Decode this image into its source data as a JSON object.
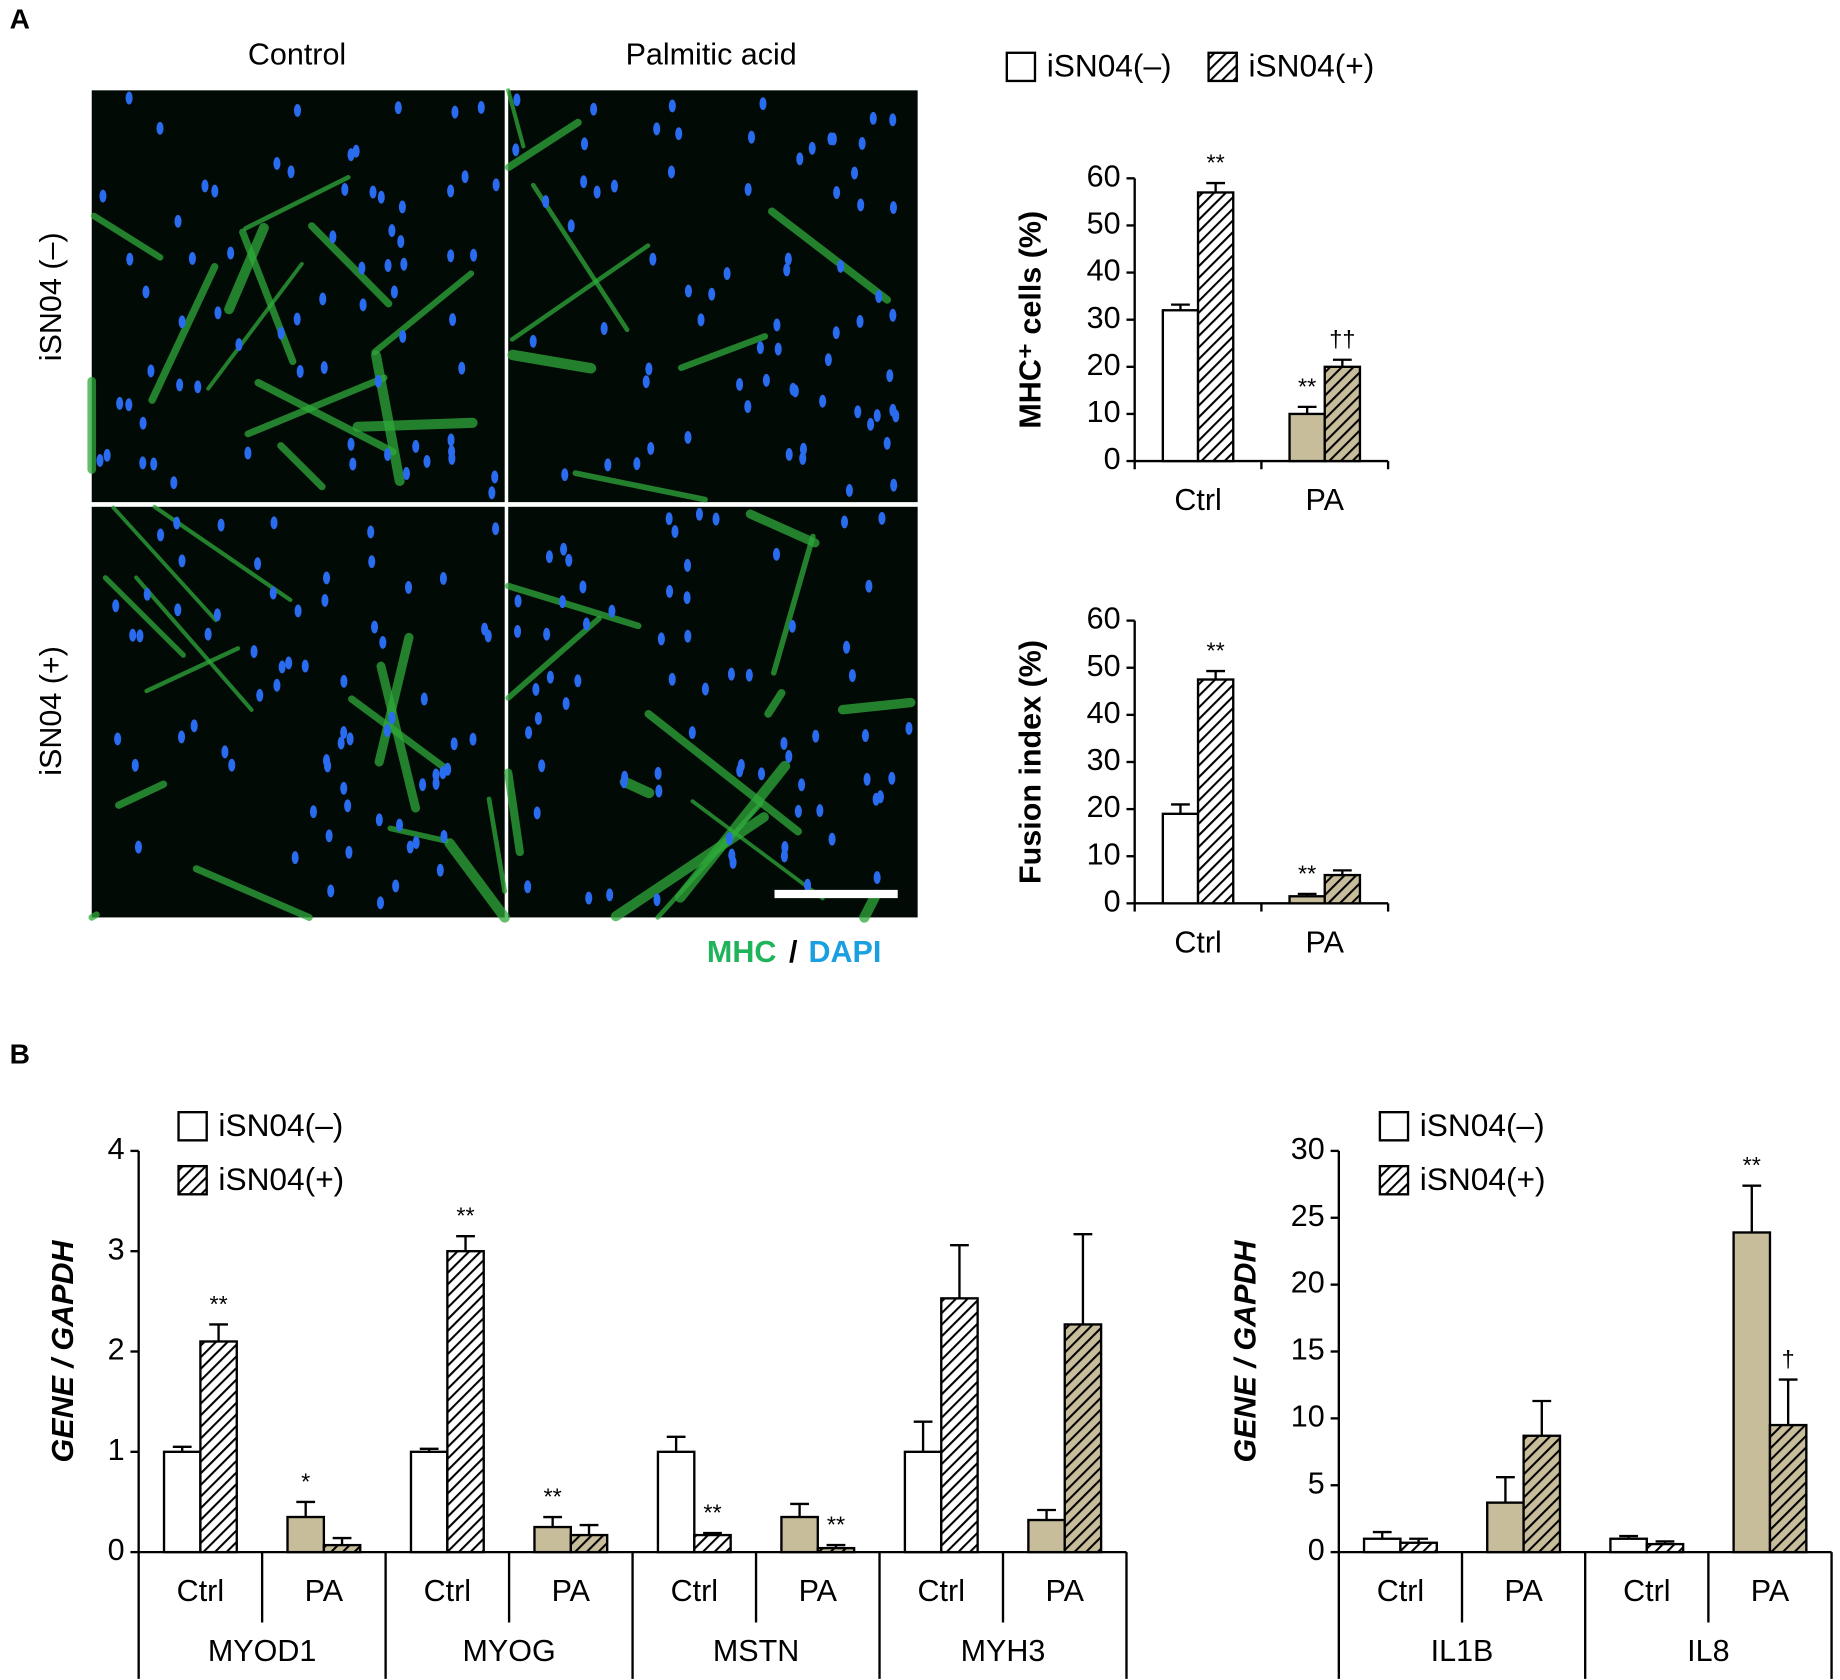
{
  "panels": [
    "A",
    "B"
  ],
  "micrograph": {
    "columns": [
      "Control",
      "Palmitic acid"
    ],
    "rows": [
      "iSN04 (–)",
      "iSN04 (+)"
    ],
    "stain": [
      "MHC",
      "/",
      "DAPI"
    ]
  },
  "chart_data": [
    {
      "type": "bar",
      "ylabel": "MHC⁺ cells (%)",
      "categories": [
        "Ctrl",
        "PA"
      ],
      "colors": {
        "Ctrl": "#ffffff",
        "PA": "#c8bd9b"
      },
      "legend": true,
      "series": [
        {
          "name": "iSN04(–)",
          "pattern": "solid",
          "values": [
            32,
            10
          ],
          "errors": [
            1.2,
            1.5
          ],
          "labels": [
            null,
            "**"
          ]
        },
        {
          "name": "iSN04(+)",
          "pattern": "hatch",
          "values": [
            57,
            20
          ],
          "errors": [
            2,
            1.5
          ],
          "labels": [
            "**",
            "††"
          ]
        }
      ],
      "ylim": [
        0,
        60
      ],
      "yticks": [
        0,
        10,
        20,
        30,
        40,
        50,
        60
      ]
    },
    {
      "type": "bar",
      "ylabel": "Fusion index (%)",
      "categories": [
        "Ctrl",
        "PA"
      ],
      "colors": {
        "Ctrl": "#ffffff",
        "PA": "#c8bd9b"
      },
      "legend": false,
      "series": [
        {
          "name": "iSN04(–)",
          "pattern": "solid",
          "values": [
            19,
            1.5
          ],
          "errors": [
            2,
            0.5
          ],
          "labels": [
            null,
            "**"
          ]
        },
        {
          "name": "iSN04(+)",
          "pattern": "hatch",
          "values": [
            47.5,
            6
          ],
          "errors": [
            1.8,
            1
          ],
          "labels": [
            "**",
            null
          ]
        }
      ],
      "ylim": [
        0,
        60
      ],
      "yticks": [
        0,
        10,
        20,
        30,
        40,
        50,
        60
      ]
    },
    {
      "type": "bar",
      "ylabel": "GENE / GAPDH",
      "categories": [
        "Ctrl",
        "PA",
        "Ctrl",
        "PA",
        "Ctrl",
        "PA",
        "Ctrl",
        "PA"
      ],
      "groups": [
        "MYOD1",
        "MYOG",
        "MSTN",
        "MYH3"
      ],
      "colors": {
        "Ctrl": "#ffffff",
        "PA": "#c8bd9b"
      },
      "legend": true,
      "series": [
        {
          "name": "iSN04(–)",
          "pattern": "solid",
          "values": [
            1.0,
            0.35,
            1.0,
            0.25,
            1.0,
            0.35,
            1.0,
            0.32
          ],
          "errors": [
            0.05,
            0.15,
            0.03,
            0.1,
            0.15,
            0.13,
            0.3,
            0.1
          ],
          "labels": [
            null,
            "*",
            null,
            "**",
            null,
            null,
            null,
            null
          ]
        },
        {
          "name": "iSN04(+)",
          "pattern": "hatch",
          "values": [
            2.1,
            0.07,
            3.0,
            0.17,
            0.17,
            0.04,
            2.53,
            2.27
          ],
          "errors": [
            0.17,
            0.07,
            0.15,
            0.1,
            0.02,
            0.03,
            0.53,
            0.9
          ],
          "labels": [
            "**",
            null,
            "**",
            null,
            "**",
            "**",
            null,
            null
          ]
        }
      ],
      "ylim": [
        0,
        4
      ],
      "yticks": [
        0,
        1,
        2,
        3,
        4
      ]
    },
    {
      "type": "bar",
      "ylabel": "GENE / GAPDH",
      "categories": [
        "Ctrl",
        "PA",
        "Ctrl",
        "PA"
      ],
      "groups": [
        "IL1B",
        "IL8"
      ],
      "colors": {
        "Ctrl": "#ffffff",
        "PA": "#c8bd9b"
      },
      "legend": true,
      "series": [
        {
          "name": "iSN04(–)",
          "pattern": "solid",
          "values": [
            1.0,
            3.7,
            1.0,
            23.9
          ],
          "errors": [
            0.5,
            1.9,
            0.2,
            3.5
          ],
          "labels": [
            null,
            null,
            null,
            "**"
          ]
        },
        {
          "name": "iSN04(+)",
          "pattern": "hatch",
          "values": [
            0.7,
            8.7,
            0.6,
            9.5
          ],
          "errors": [
            0.3,
            2.6,
            0.2,
            3.4
          ],
          "labels": [
            null,
            null,
            null,
            "†"
          ]
        }
      ],
      "ylim": [
        0,
        30
      ],
      "yticks": [
        0,
        5,
        10,
        15,
        20,
        25,
        30
      ]
    }
  ]
}
